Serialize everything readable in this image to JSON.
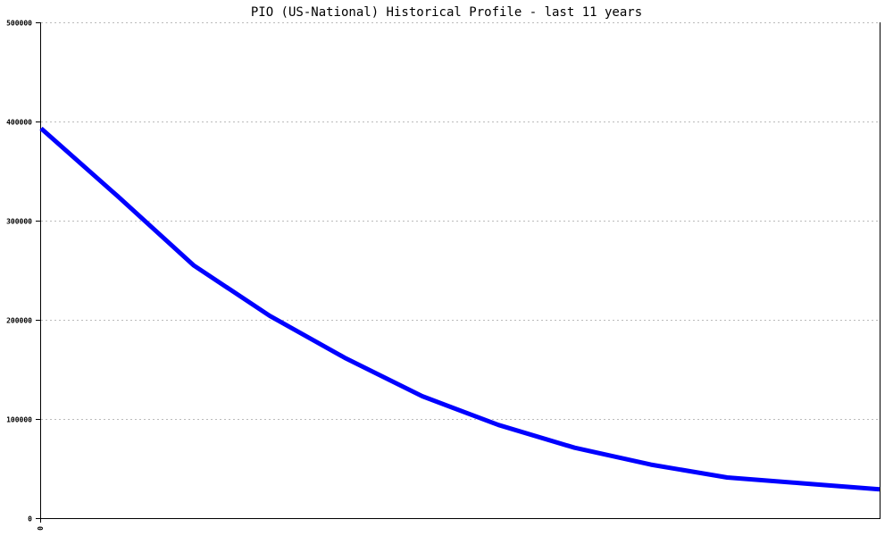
{
  "chart_data": {
    "type": "line",
    "title": "PIO (US-National) Historical Profile - last 11 years",
    "xlabel": "",
    "ylabel": "",
    "ylim": [
      0,
      500000
    ],
    "yticks": [
      "0",
      "100000",
      "200000",
      "300000",
      "400000",
      "500000"
    ],
    "xticks": [
      "0"
    ],
    "grid": true,
    "line_color": "#0000ff",
    "series": [
      {
        "values": [
          393000,
          325000,
          255000,
          204000,
          161000,
          123000,
          94000,
          71000,
          54000,
          41000,
          35000,
          29000
        ]
      }
    ]
  }
}
